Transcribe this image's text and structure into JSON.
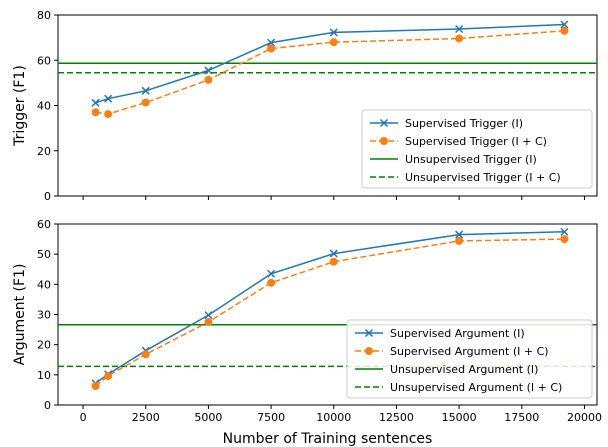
{
  "chart_data": [
    {
      "type": "line",
      "xlabel": "",
      "ylabel": "Trigger (F1)",
      "xlim": [
        -1000,
        20500
      ],
      "ylim": [
        0,
        80
      ],
      "xticks": [
        0,
        2500,
        5000,
        7500,
        10000,
        12500,
        15000,
        17500,
        20000
      ],
      "yticks": [
        0,
        20,
        40,
        60,
        80
      ],
      "ytick_labels": [
        "0",
        "20",
        "40",
        "60",
        "80"
      ],
      "show_x_tick_labels": false,
      "grid": false,
      "legend_position": "lower-right",
      "x": [
        500,
        1000,
        2500,
        5000,
        7500,
        10000,
        15000,
        19200
      ],
      "series": [
        {
          "name": "Supervised Trigger (I)",
          "values": [
            41.2,
            43.0,
            46.5,
            55.5,
            67.8,
            72.3,
            73.8,
            75.8
          ],
          "color": "#1f77b4",
          "style": "solid",
          "marker": "x"
        },
        {
          "name": "Supervised Trigger (I + C)",
          "values": [
            37.0,
            36.2,
            41.3,
            51.3,
            65.2,
            68.0,
            69.6,
            73.0
          ],
          "color": "#ff7f0e",
          "style": "dashed",
          "marker": "o"
        }
      ],
      "hlines": [
        {
          "name": "Unsupervised Trigger (I)",
          "value": 58.7,
          "color": "#008000",
          "style": "solid"
        },
        {
          "name": "Unsupervised Trigger (I + C)",
          "value": 54.5,
          "color": "#008000",
          "style": "dashed"
        }
      ]
    },
    {
      "type": "line",
      "xlabel": "Number of Training sentences",
      "ylabel": "Argument (F1)",
      "xlim": [
        -1000,
        20500
      ],
      "ylim": [
        0,
        60
      ],
      "xticks": [
        0,
        2500,
        5000,
        7500,
        10000,
        12500,
        15000,
        17500,
        20000
      ],
      "xtick_labels": [
        "0",
        "2500",
        "5000",
        "7500",
        "10000",
        "12500",
        "15000",
        "17500",
        "20000"
      ],
      "yticks": [
        0,
        10,
        20,
        30,
        40,
        50,
        60
      ],
      "ytick_labels": [
        "0",
        "10",
        "20",
        "30",
        "40",
        "50",
        "60"
      ],
      "show_x_tick_labels": true,
      "grid": false,
      "legend_position": "lower-right",
      "x": [
        500,
        1000,
        2500,
        5000,
        7500,
        10000,
        15000,
        19200
      ],
      "series": [
        {
          "name": "Supervised Argument (I)",
          "values": [
            7.2,
            10.2,
            18.0,
            29.8,
            43.5,
            50.2,
            56.5,
            57.4
          ],
          "color": "#1f77b4",
          "style": "solid",
          "marker": "x"
        },
        {
          "name": "Supervised Argument (I + C)",
          "values": [
            6.3,
            9.6,
            16.8,
            27.5,
            40.5,
            47.5,
            54.4,
            55.0
          ],
          "color": "#ff7f0e",
          "style": "dashed",
          "marker": "o"
        }
      ],
      "hlines": [
        {
          "name": "Unsupervised Argument (I)",
          "value": 26.6,
          "color": "#008000",
          "style": "solid"
        },
        {
          "name": "Unsupervised Argument (I + C)",
          "value": 12.8,
          "color": "#008000",
          "style": "dashed"
        }
      ]
    }
  ]
}
